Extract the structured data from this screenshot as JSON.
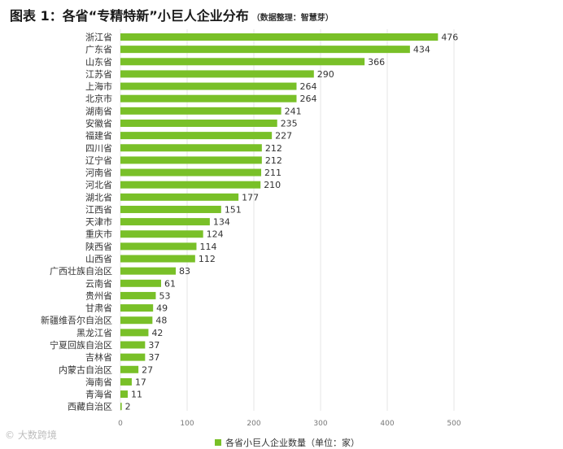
{
  "title": {
    "main": "图表 1：各省“专精特新”小巨人企业分布",
    "sub": "（数据整理：智慧芽）"
  },
  "watermark": "© 大数跨境",
  "legend": {
    "label": "各省小巨人企业数量（单位：家）"
  },
  "colors": {
    "bar": "#79c028"
  },
  "chart_data": {
    "type": "bar",
    "orientation": "horizontal",
    "categories": [
      "浙江省",
      "广东省",
      "山东省",
      "江苏省",
      "上海市",
      "北京市",
      "湖南省",
      "安徽省",
      "福建省",
      "四川省",
      "辽宁省",
      "河南省",
      "河北省",
      "湖北省",
      "江西省",
      "天津市",
      "重庆市",
      "陕西省",
      "山西省",
      "广西壮族自治区",
      "云南省",
      "贵州省",
      "甘肃省",
      "新疆维吾尔自治区",
      "黑龙江省",
      "宁夏回族自治区",
      "吉林省",
      "内蒙古自治区",
      "海南省",
      "青海省",
      "西藏自治区"
    ],
    "series": [
      {
        "name": "各省小巨人企业数量（单位：家）",
        "values": [
          476,
          434,
          366,
          290,
          264,
          264,
          241,
          235,
          227,
          212,
          212,
          211,
          210,
          177,
          151,
          134,
          124,
          114,
          112,
          83,
          61,
          53,
          49,
          48,
          42,
          37,
          37,
          27,
          17,
          11,
          2
        ]
      }
    ],
    "xlim": [
      0,
      500
    ],
    "xticks": [
      0,
      100,
      200,
      300,
      400,
      500
    ],
    "grid": true,
    "legend_position": "bottom"
  }
}
